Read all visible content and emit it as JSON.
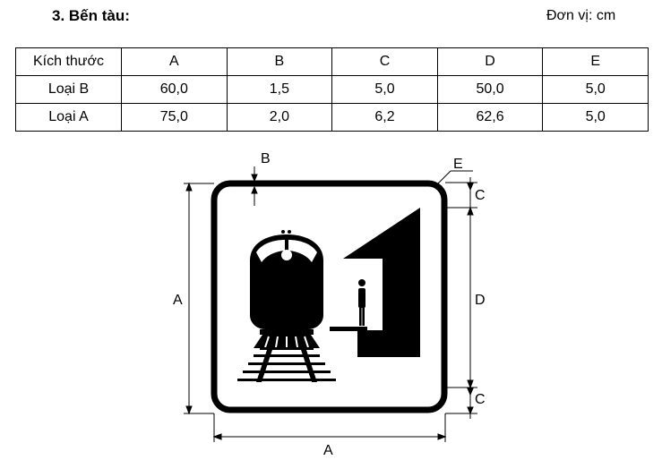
{
  "section": {
    "heading": "3. Bến tàu:",
    "unit": "Đơn vị: cm"
  },
  "table": {
    "header": [
      "Kích thước",
      "A",
      "B",
      "C",
      "D",
      "E"
    ],
    "rows": [
      [
        "Loại B",
        "60,0",
        "1,5",
        "5,0",
        "50,0",
        "5,0"
      ],
      [
        "Loại A",
        "75,0",
        "2,0",
        "6,2",
        "62,6",
        "5,0"
      ]
    ]
  },
  "diagram": {
    "labels": {
      "A_left": "A",
      "A_bottom": "A",
      "B": "B",
      "C_top": "C",
      "C_bottom": "C",
      "D": "D",
      "E": "E"
    },
    "icons": [
      "train-icon",
      "station-building-icon",
      "person-icon"
    ],
    "colors": {
      "ink": "#000000",
      "background": "#ffffff"
    }
  }
}
